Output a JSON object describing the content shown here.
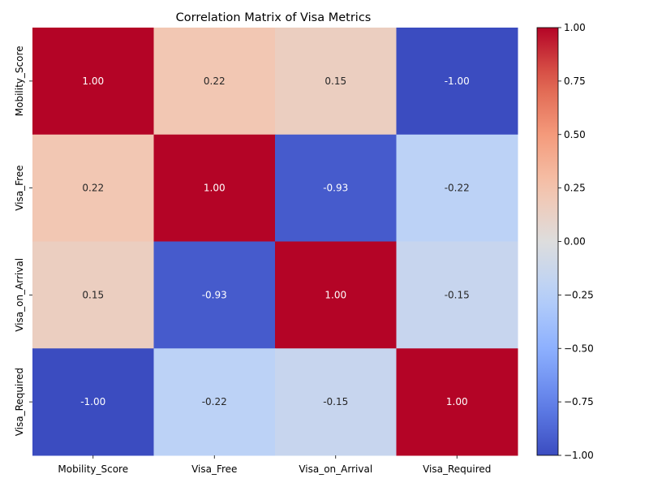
{
  "chart_data": {
    "type": "heatmap",
    "title": "Correlation Matrix of Visa Metrics",
    "xlabel": "",
    "ylabel": "",
    "rows": [
      "Mobility_Score",
      "Visa_Free",
      "Visa_on_Arrival",
      "Visa_Required"
    ],
    "columns": [
      "Mobility_Score",
      "Visa_Free",
      "Visa_on_Arrival",
      "Visa_Required"
    ],
    "values": [
      [
        1.0,
        0.22,
        0.15,
        -1.0
      ],
      [
        0.22,
        1.0,
        -0.93,
        -0.22
      ],
      [
        0.15,
        -0.93,
        1.0,
        -0.15
      ],
      [
        -1.0,
        -0.22,
        -0.15,
        1.0
      ]
    ],
    "cell_labels": [
      [
        "1.00",
        "0.22",
        "0.15",
        "-1.00"
      ],
      [
        "0.22",
        "1.00",
        "-0.93",
        "-0.22"
      ],
      [
        "0.15",
        "-0.93",
        "1.00",
        "-0.15"
      ],
      [
        "-1.00",
        "-0.22",
        "-0.15",
        "1.00"
      ]
    ],
    "colormap": "coolwarm",
    "vmin": -1.0,
    "vmax": 1.0,
    "colorbar": {
      "ticks": [
        1.0,
        0.75,
        0.5,
        0.25,
        0.0,
        -0.25,
        -0.5,
        -0.75,
        -1.0
      ],
      "tick_labels": [
        "1.00",
        "0.75",
        "0.50",
        "0.25",
        "0.00",
        "−0.25",
        "−0.50",
        "−0.75",
        "−1.00"
      ],
      "placement": "right"
    },
    "grid": false
  }
}
